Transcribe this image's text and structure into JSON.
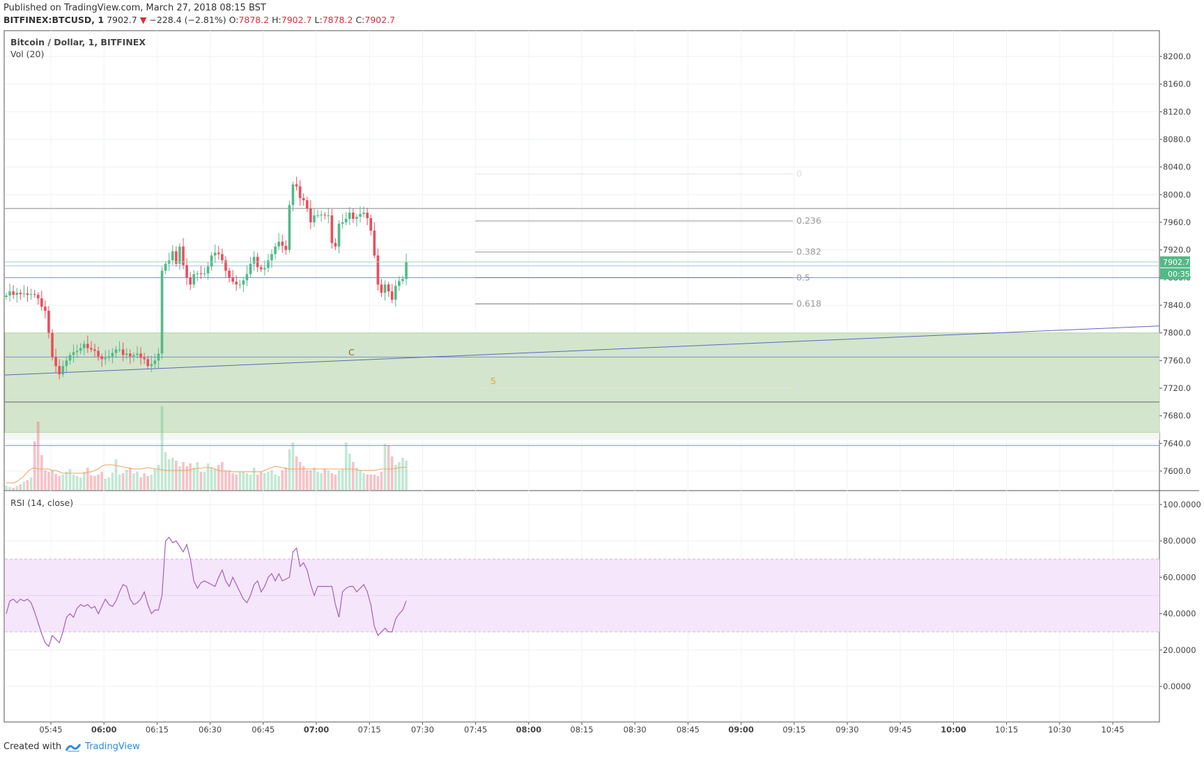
{
  "header": {
    "published": "Published on TradingView.com, March 27, 2018 08:15 BST",
    "symbol": "BITFINEX:BTCUSD, 1",
    "last": "7902.7",
    "change": "−228.4 (−2.81%)",
    "o_label": "O:",
    "o_value": "7878.2",
    "h_label": "H:",
    "h_value": "7902.7",
    "l_label": "L:",
    "l_value": "7878.2",
    "c_label": "C:",
    "c_value": "7902.7"
  },
  "main_pane": {
    "title": "Bitcoin / Dollar, 1, BITFINEX",
    "volume_label": "Vol (20)",
    "last_price_tag": "7902.7",
    "countdown_tag": "00:35"
  },
  "rsi_pane": {
    "title": "RSI (14, close)"
  },
  "footer": {
    "created_with": "Created with",
    "brand": "TradingView"
  },
  "chart_data": {
    "type": "candlestick",
    "price_axis": {
      "ticks": [
        "8200.0",
        "8160.0",
        "8120.0",
        "8080.0",
        "8040.0",
        "8000.0",
        "7960.0",
        "7920.0",
        "7880.0",
        "7840.0",
        "7800.0",
        "7760.0",
        "7720.0",
        "7680.0",
        "7640.0",
        "7600.0"
      ],
      "range": [
        7572,
        8236
      ]
    },
    "rsi_axis": {
      "ticks": [
        "100.0000",
        "80.0000",
        "60.0000",
        "40.0000",
        "20.0000",
        "0.0000"
      ],
      "band": [
        30,
        70
      ]
    },
    "time_axis": [
      {
        "label": "05:45",
        "bold": false
      },
      {
        "label": "06:00",
        "bold": true
      },
      {
        "label": "06:15",
        "bold": false
      },
      {
        "label": "06:30",
        "bold": false
      },
      {
        "label": "06:45",
        "bold": false
      },
      {
        "label": "07:00",
        "bold": true
      },
      {
        "label": "07:15",
        "bold": false
      },
      {
        "label": "07:30",
        "bold": false
      },
      {
        "label": "07:45",
        "bold": false
      },
      {
        "label": "08:00",
        "bold": true
      },
      {
        "label": "08:15",
        "bold": false
      },
      {
        "label": "08:30",
        "bold": false
      },
      {
        "label": "08:45",
        "bold": false
      },
      {
        "label": "09:00",
        "bold": true
      },
      {
        "label": "09:15",
        "bold": false
      },
      {
        "label": "09:30",
        "bold": false
      },
      {
        "label": "09:45",
        "bold": false
      },
      {
        "label": "10:00",
        "bold": true
      },
      {
        "label": "10:15",
        "bold": false
      },
      {
        "label": "10:30",
        "bold": false
      },
      {
        "label": "10:45",
        "bold": false
      }
    ],
    "close_path": [
      7854,
      7860,
      7855,
      7858,
      7856,
      7857,
      7855,
      7856,
      7855,
      7850,
      7838,
      7832,
      7800,
      7765,
      7752,
      7740,
      7752,
      7760,
      7768,
      7772,
      7774,
      7778,
      7784,
      7778,
      7776,
      7774,
      7766,
      7762,
      7764,
      7766,
      7771,
      7776,
      7776,
      7768,
      7770,
      7766,
      7768,
      7770,
      7764,
      7762,
      7752,
      7755,
      7760,
      7770,
      7890,
      7900,
      7905,
      7918,
      7900,
      7925,
      7898,
      7880,
      7870,
      7885,
      7886,
      7885,
      7886,
      7896,
      7912,
      7916,
      7914,
      7905,
      7890,
      7880,
      7874,
      7870,
      7870,
      7876,
      7885,
      7900,
      7910,
      7895,
      7892,
      7894,
      7905,
      7914,
      7925,
      7932,
      7926,
      7920,
      7985,
      8015,
      8012,
      7995,
      7992,
      7980,
      7960,
      7970,
      7970,
      7971,
      7970,
      7970,
      7930,
      7925,
      7958,
      7960,
      7965,
      7974,
      7965,
      7968,
      7972,
      7974,
      7966,
      7948,
      7912,
      7870,
      7858,
      7870,
      7860,
      7848,
      7868,
      7875,
      7878,
      7902.7
    ],
    "volumes": [
      6,
      4,
      3,
      6,
      8,
      12,
      14,
      18,
      70,
      98,
      50,
      28,
      26,
      28,
      23,
      20,
      22,
      26,
      30,
      22,
      20,
      18,
      26,
      32,
      21,
      20,
      22,
      26,
      16,
      18,
      25,
      44,
      22,
      24,
      29,
      32,
      24,
      26,
      18,
      24,
      20,
      22,
      30,
      36,
      120,
      54,
      44,
      46,
      42,
      34,
      40,
      34,
      38,
      32,
      40,
      26,
      26,
      38,
      32,
      30,
      36,
      40,
      28,
      28,
      24,
      22,
      26,
      26,
      24,
      22,
      32,
      22,
      26,
      24,
      26,
      28,
      22,
      20,
      28,
      32,
      58,
      68,
      48,
      40,
      34,
      28,
      28,
      32,
      26,
      24,
      30,
      28,
      24,
      22,
      28,
      30,
      68,
      52,
      40,
      32,
      28,
      24,
      22,
      22,
      22,
      20,
      26,
      66,
      64,
      48,
      36,
      40,
      46,
      42
    ],
    "volume_ma": [
      10,
      10,
      10,
      12,
      16,
      20,
      26,
      30,
      32,
      30,
      30,
      30,
      30,
      28,
      28,
      26,
      24,
      24,
      24,
      24,
      24,
      24,
      24,
      25,
      26,
      28,
      30,
      34,
      36,
      36,
      36,
      35,
      34,
      33,
      32,
      31,
      30,
      30,
      30,
      31,
      32,
      31,
      30,
      30,
      29,
      28,
      28,
      28,
      28,
      28,
      28,
      28,
      29,
      30,
      31,
      31,
      32,
      32,
      32,
      30,
      28,
      27,
      27,
      27,
      26,
      26,
      26,
      26,
      26,
      26,
      26,
      26,
      26,
      28,
      30,
      32,
      34,
      33,
      32,
      31,
      30,
      30,
      30,
      30,
      30,
      30,
      30,
      30,
      30,
      30,
      30,
      30,
      30,
      30,
      30,
      30,
      30,
      30,
      30,
      29,
      28,
      28,
      28,
      28,
      28,
      29,
      30,
      30,
      30,
      30,
      31,
      32,
      32,
      33
    ],
    "rsi": [
      40,
      47,
      48,
      46,
      48,
      47,
      48,
      46,
      41,
      35,
      29,
      24,
      22,
      28,
      26,
      24,
      30,
      38,
      40,
      38,
      43,
      45,
      44,
      45,
      43,
      44,
      40,
      44,
      48,
      45,
      44,
      47,
      52,
      56,
      55,
      48,
      45,
      46,
      48,
      52,
      45,
      40,
      42,
      42,
      50,
      80,
      82,
      79,
      80,
      77,
      74,
      78,
      70,
      58,
      54,
      57,
      58,
      57,
      56,
      55,
      60,
      64,
      58,
      55,
      60,
      56,
      52,
      48,
      46,
      50,
      56,
      58,
      52,
      55,
      60,
      62,
      58,
      62,
      58,
      59,
      60,
      74,
      76,
      66,
      68,
      64,
      56,
      50,
      55,
      55,
      55,
      55,
      55,
      45,
      38,
      52,
      54,
      55,
      55,
      52,
      54,
      56,
      52,
      45,
      33,
      28,
      30,
      32,
      30,
      30,
      37,
      40,
      42,
      47
    ]
  },
  "drawings": {
    "fib_levels": [
      "0",
      "0.236",
      "0.382",
      "0.5",
      "0.618",
      "1"
    ],
    "pattern_labels": [
      "C",
      "5"
    ],
    "support_zone": [
      7645,
      7800
    ]
  }
}
